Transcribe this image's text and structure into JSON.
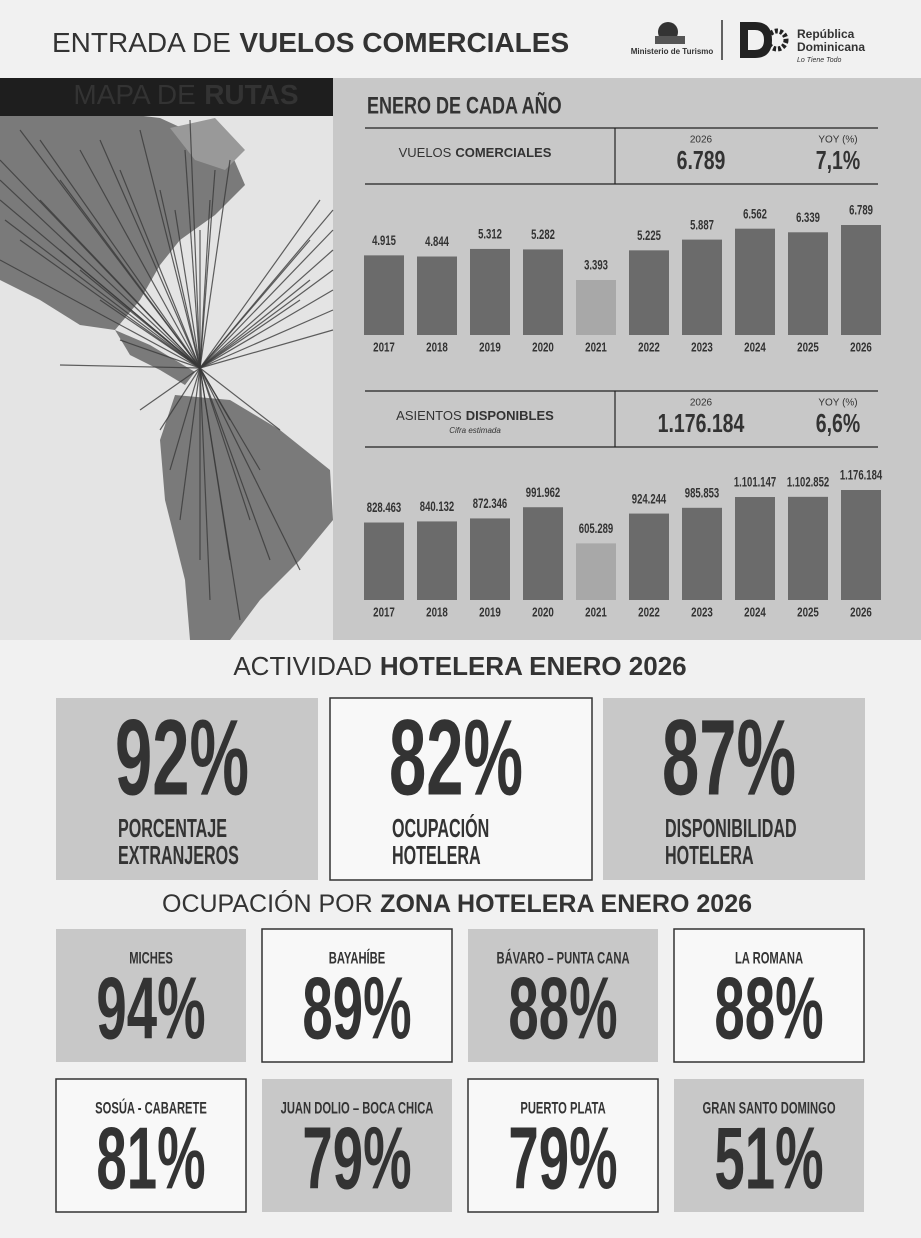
{
  "header": {
    "title": [
      "ENTRADA DE",
      "VUELOS COMERCIALES"
    ],
    "ministry": "Ministerio de Turismo",
    "brand": [
      "República",
      "Dominicana"
    ],
    "slogan": "Lo Tiene Todo"
  },
  "map": {
    "title": [
      "MAPA DE",
      "RUTAS"
    ]
  },
  "flights_panel": {
    "title": "ENERO DE CADA AÑO"
  },
  "chart_data": [
    {
      "type": "bar",
      "label": [
        "VUELOS",
        "COMERCIALES"
      ],
      "year": "2026",
      "total": "6.789",
      "yoy_label": "YOY (%)",
      "yoy": "7,1%",
      "categories": [
        "2017",
        "2018",
        "2019",
        "2020",
        "2021",
        "2022",
        "2023",
        "2024",
        "2025",
        "2026"
      ],
      "values": [
        4915,
        4844,
        5312,
        5282,
        3393,
        5225,
        5887,
        6562,
        6339,
        6789
      ],
      "value_labels": [
        "4.915",
        "4.844",
        "5.312",
        "5.282",
        "3.393",
        "5.225",
        "5.887",
        "6.562",
        "6.339",
        "6.789"
      ],
      "colors": [
        "#6b6b6b",
        "#6b6b6b",
        "#6b6b6b",
        "#6b6b6b",
        "#a8a8a8",
        "#6b6b6b",
        "#6b6b6b",
        "#6b6b6b",
        "#6b6b6b",
        "#6b6b6b"
      ]
    },
    {
      "type": "bar",
      "label": [
        "ASIENTOS",
        "DISPONIBLES"
      ],
      "note": "Cifra estimada",
      "year": "2026",
      "total": "1.176.184",
      "yoy_label": "YOY (%)",
      "yoy": "6,6%",
      "categories": [
        "2017",
        "2018",
        "2019",
        "2020",
        "2021",
        "2022",
        "2023",
        "2024",
        "2025",
        "2026"
      ],
      "values": [
        828463,
        840132,
        872346,
        991962,
        605289,
        924244,
        985853,
        1101147,
        1102852,
        1176184
      ],
      "value_labels": [
        "828.463",
        "840.132",
        "872.346",
        "991.962",
        "605.289",
        "924.244",
        "985.853",
        "1.101.147",
        "1.102.852",
        "1.176.184"
      ],
      "colors": [
        "#6b6b6b",
        "#6b6b6b",
        "#6b6b6b",
        "#6b6b6b",
        "#a8a8a8",
        "#6b6b6b",
        "#6b6b6b",
        "#6b6b6b",
        "#6b6b6b",
        "#6b6b6b"
      ]
    }
  ],
  "hotel_activity": {
    "title": [
      "ACTIVIDAD",
      "HOTELERA ENERO 2026"
    ],
    "cards": [
      {
        "value": "92%",
        "label": [
          "PORCENTAJE",
          "EXTRANJEROS"
        ]
      },
      {
        "value": "82%",
        "label": [
          "OCUPACIÓN",
          "HOTELERA"
        ]
      },
      {
        "value": "87%",
        "label": [
          "DISPONIBILIDAD",
          "HOTELERA"
        ]
      }
    ]
  },
  "zones": {
    "title": [
      "OCUPACIÓN POR",
      "ZONA HOTELERA ENERO 2026"
    ],
    "items": [
      {
        "name": "MICHES",
        "value": "94%"
      },
      {
        "name": "BAYAHÍBE",
        "value": "89%"
      },
      {
        "name": "BÁVARO – PUNTA CANA",
        "value": "88%"
      },
      {
        "name": "LA ROMANA",
        "value": "88%"
      },
      {
        "name": "SOSÚA - CABARETE",
        "value": "81%"
      },
      {
        "name": "JUAN DOLIO – BOCA CHICA",
        "value": "79%"
      },
      {
        "name": "PUERTO PLATA",
        "value": "79%"
      },
      {
        "name": "GRAN SANTO DOMINGO",
        "value": "51%"
      }
    ]
  }
}
